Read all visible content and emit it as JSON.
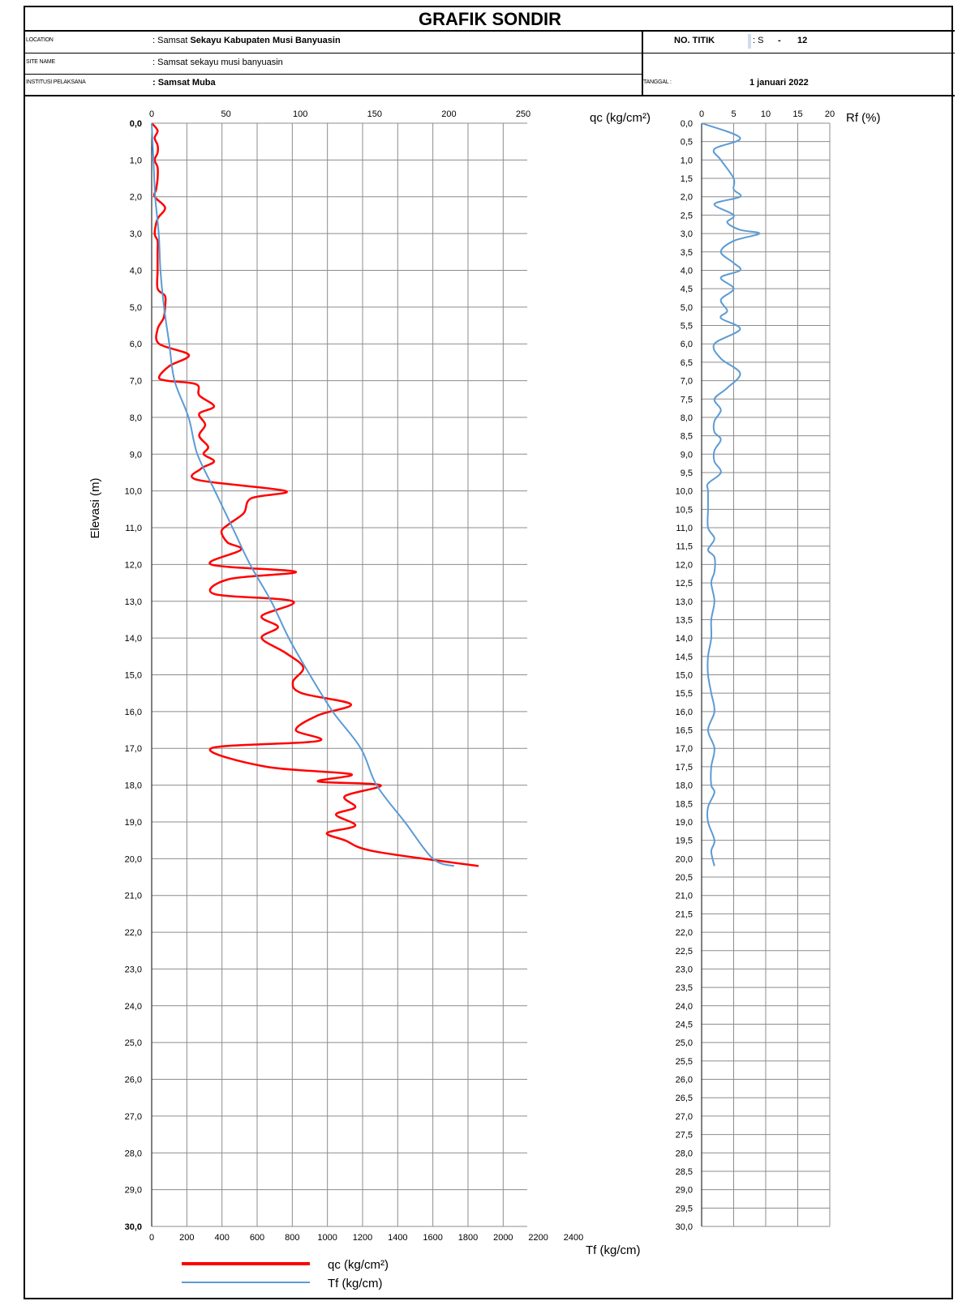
{
  "header": {
    "title": "GRAFIK SONDIR",
    "location_label": "LOCATION",
    "location_prefix": ": Samsat ",
    "location_value": "Sekayu Kabupaten Musi Banyuasin",
    "site_label": "SITE NAME",
    "site_value": ": Samsat sekayu musi banyuasin",
    "institusi_label": "INSTITUSI PELAKSANA",
    "institusi_value": ": Samsat Muba",
    "no_titik_label": "NO. TITIK",
    "no_titik_value_s": ": S",
    "no_titik_dash": "-",
    "no_titik_value_num": "12",
    "tanggal_label": "TANGGAL :",
    "tanggal_value": "1 januari 2022"
  },
  "chart_data": [
    {
      "type": "line",
      "ylabel": "Elevasi (m)",
      "y_direction": "down",
      "ylim": [
        0,
        30
      ],
      "yticks": [
        "0,0",
        "1,0",
        "2,0",
        "3,0",
        "4,0",
        "5,0",
        "6,0",
        "7,0",
        "8,0",
        "9,0",
        "10,0",
        "11,0",
        "12,0",
        "13,0",
        "14,0",
        "15,0",
        "16,0",
        "17,0",
        "18,0",
        "19,0",
        "20,0",
        "21,0",
        "22,0",
        "23,0",
        "24,0",
        "25,0",
        "26,0",
        "27,0",
        "28,0",
        "29,0",
        "30,0"
      ],
      "top_axis": {
        "label": "qc (kg/cm²)",
        "range": [
          0,
          250
        ],
        "ticks": [
          "0",
          "50",
          "100",
          "150",
          "200",
          "250"
        ]
      },
      "bottom_axis": {
        "label": "Tf (kg/cm)",
        "range": [
          0,
          2400
        ],
        "ticks": [
          "0",
          "200",
          "400",
          "600",
          "800",
          "1000",
          "1200",
          "1400",
          "1600",
          "1800",
          "2000",
          "2200",
          "2400"
        ]
      },
      "grid": true,
      "legend_position": "bottom",
      "series": [
        {
          "name": "qc (kg/cm²)",
          "color": "#ff0000",
          "axis": "top",
          "points": [
            [
              0,
              0
            ],
            [
              4,
              0.2
            ],
            [
              2,
              0.4
            ],
            [
              4,
              0.6
            ],
            [
              4,
              0.8
            ],
            [
              2,
              1
            ],
            [
              4,
              1.2
            ],
            [
              4,
              1.5
            ],
            [
              3,
              1.8
            ],
            [
              2,
              2
            ],
            [
              9,
              2.3
            ],
            [
              4,
              2.6
            ],
            [
              2,
              3
            ],
            [
              4,
              3.2
            ],
            [
              4,
              3.5
            ],
            [
              4,
              4
            ],
            [
              4,
              4.5
            ],
            [
              9,
              4.7
            ],
            [
              9,
              5
            ],
            [
              8,
              5.3
            ],
            [
              4,
              5.6
            ],
            [
              5,
              6
            ],
            [
              25,
              6.3
            ],
            [
              12,
              6.6
            ],
            [
              5,
              6.9
            ],
            [
              10,
              7
            ],
            [
              30,
              7.1
            ],
            [
              32,
              7.4
            ],
            [
              42,
              7.7
            ],
            [
              32,
              7.9
            ],
            [
              36,
              8.2
            ],
            [
              32,
              8.5
            ],
            [
              38,
              8.8
            ],
            [
              35,
              9
            ],
            [
              42,
              9.2
            ],
            [
              33,
              9.4
            ],
            [
              31,
              9.7
            ],
            [
              90,
              10
            ],
            [
              67,
              10.2
            ],
            [
              62,
              10.6
            ],
            [
              52,
              10.9
            ],
            [
              47,
              11.1
            ],
            [
              51,
              11.4
            ],
            [
              60,
              11.6
            ],
            [
              40,
              12
            ],
            [
              97,
              12.2
            ],
            [
              52,
              12.4
            ],
            [
              42,
              12.8
            ],
            [
              95,
              13
            ],
            [
              74,
              13.4
            ],
            [
              85,
              13.7
            ],
            [
              74,
              14
            ],
            [
              90,
              14.4
            ],
            [
              102,
              14.8
            ],
            [
              95,
              15.2
            ],
            [
              101,
              15.5
            ],
            [
              134,
              15.8
            ],
            [
              112,
              16.1
            ],
            [
              97,
              16.5
            ],
            [
              112,
              16.8
            ],
            [
              40,
              17
            ],
            [
              77,
              17.5
            ],
            [
              134,
              17.7
            ],
            [
              112,
              17.9
            ],
            [
              154,
              18
            ],
            [
              130,
              18.3
            ],
            [
              137,
              18.6
            ],
            [
              124,
              18.8
            ],
            [
              137,
              19.1
            ],
            [
              118,
              19.3
            ],
            [
              130,
              19.5
            ],
            [
              150,
              19.8
            ],
            [
              220,
              20.2
            ]
          ]
        },
        {
          "name": "Tf (kg/cm)",
          "color": "#5b9bd5",
          "axis": "bottom",
          "points": [
            [
              0,
              0
            ],
            [
              10,
              1
            ],
            [
              20,
              2
            ],
            [
              40,
              3
            ],
            [
              50,
              4
            ],
            [
              70,
              5
            ],
            [
              100,
              6
            ],
            [
              130,
              7
            ],
            [
              210,
              8
            ],
            [
              260,
              9
            ],
            [
              360,
              10
            ],
            [
              460,
              11
            ],
            [
              560,
              12
            ],
            [
              680,
              13
            ],
            [
              780,
              14
            ],
            [
              900,
              15
            ],
            [
              1030,
              16
            ],
            [
              1190,
              17
            ],
            [
              1280,
              18
            ],
            [
              1440,
              19
            ],
            [
              1600,
              20
            ],
            [
              1720,
              20.2
            ]
          ]
        }
      ]
    },
    {
      "type": "line",
      "xlabel": "Rf (%)",
      "y_direction": "down",
      "ylim": [
        0,
        30
      ],
      "xlim": [
        0,
        20
      ],
      "xticks": [
        "0",
        "5",
        "10",
        "15",
        "20"
      ],
      "yticks": [
        "0,0",
        "0,5",
        "1,0",
        "1,5",
        "2,0",
        "2,5",
        "3,0",
        "3,5",
        "4,0",
        "4,5",
        "5,0",
        "5,5",
        "6,0",
        "6,5",
        "7,0",
        "7,5",
        "8,0",
        "8,5",
        "9,0",
        "9,5",
        "10,0",
        "10,5",
        "11,0",
        "11,5",
        "12,0",
        "12,5",
        "13,0",
        "13,5",
        "14,0",
        "14,5",
        "15,0",
        "15,5",
        "16,0",
        "16,5",
        "17,0",
        "17,5",
        "18,0",
        "18,5",
        "19,0",
        "19,5",
        "20,0",
        "20,5",
        "21,0",
        "21,5",
        "22,0",
        "22,5",
        "23,0",
        "23,5",
        "24,0",
        "24,5",
        "25,0",
        "25,5",
        "26,0",
        "26,5",
        "27,0",
        "27,5",
        "28,0",
        "28,5",
        "29,0",
        "29,5",
        "30,0"
      ],
      "grid": true,
      "series": [
        {
          "name": "Rf (%)",
          "color": "#5b9bd5",
          "points": [
            [
              0,
              0
            ],
            [
              6,
              0.4
            ],
            [
              2,
              0.7
            ],
            [
              3,
              1
            ],
            [
              5,
              1.5
            ],
            [
              5,
              1.8
            ],
            [
              6,
              2
            ],
            [
              2,
              2.2
            ],
            [
              5,
              2.5
            ],
            [
              4,
              2.7
            ],
            [
              6,
              2.9
            ],
            [
              9,
              3
            ],
            [
              5,
              3.2
            ],
            [
              3,
              3.5
            ],
            [
              5,
              3.8
            ],
            [
              6,
              4
            ],
            [
              3,
              4.2
            ],
            [
              5,
              4.5
            ],
            [
              3,
              4.8
            ],
            [
              4,
              5.1
            ],
            [
              3,
              5.3
            ],
            [
              6,
              5.6
            ],
            [
              2,
              6
            ],
            [
              3,
              6.4
            ],
            [
              6,
              6.8
            ],
            [
              4,
              7.2
            ],
            [
              2,
              7.5
            ],
            [
              3,
              7.8
            ],
            [
              2,
              8.1
            ],
            [
              2,
              8.4
            ],
            [
              3,
              8.6
            ],
            [
              2,
              8.9
            ],
            [
              2,
              9.2
            ],
            [
              3,
              9.5
            ],
            [
              1,
              9.8
            ],
            [
              1,
              10
            ],
            [
              1,
              10.5
            ],
            [
              1,
              11
            ],
            [
              2,
              11.3
            ],
            [
              1,
              11.6
            ],
            [
              2,
              11.8
            ],
            [
              2,
              12.2
            ],
            [
              1.5,
              12.5
            ],
            [
              2,
              13
            ],
            [
              1.5,
              13.5
            ],
            [
              1.5,
              14
            ],
            [
              1,
              14.5
            ],
            [
              1,
              15
            ],
            [
              1.5,
              15.5
            ],
            [
              2,
              16
            ],
            [
              1,
              16.5
            ],
            [
              2,
              17
            ],
            [
              1.5,
              17.5
            ],
            [
              1.5,
              18
            ],
            [
              2,
              18.2
            ],
            [
              1,
              18.6
            ],
            [
              1,
              19
            ],
            [
              2,
              19.5
            ],
            [
              1.5,
              19.8
            ],
            [
              2,
              20.2
            ]
          ]
        }
      ]
    }
  ],
  "legend": {
    "qc_label": "qc (kg/cm²)",
    "tf_label": "Tf (kg/cm)"
  }
}
